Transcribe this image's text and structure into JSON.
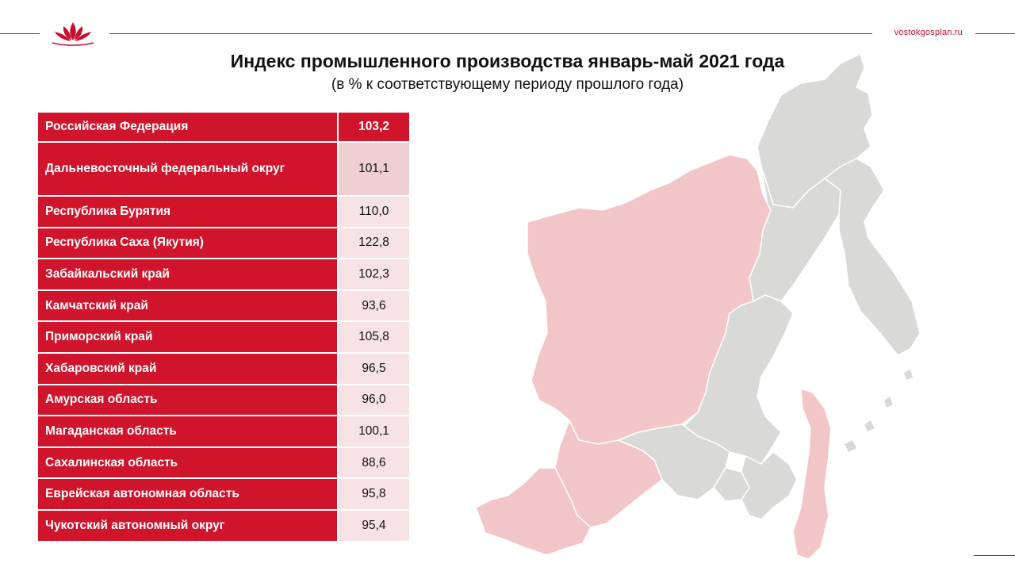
{
  "header": {
    "site_url": "vostokgosplan.ru",
    "accent_color": "#c8102e",
    "logo_icon": "lotus-logo-icon"
  },
  "title": "Индекс промышленного производства январь-май 2021 года",
  "subtitle": "(в % к соответствующему  периоду прошлого года)",
  "table": {
    "rows": [
      {
        "region": "Российская Федерация",
        "value": "103,2"
      },
      {
        "region": "Дальневосточный федеральный округ",
        "value": "101,1"
      },
      {
        "region": "Республика Бурятия",
        "value": "110,0"
      },
      {
        "region": "Республика Саха (Якутия)",
        "value": "122,8"
      },
      {
        "region": "Забайкальский край",
        "value": "102,3"
      },
      {
        "region": "Камчатский край",
        "value": "93,6"
      },
      {
        "region": "Приморский край",
        "value": "105,8"
      },
      {
        "region": "Хабаровский край",
        "value": "96,5"
      },
      {
        "region": "Амурская область",
        "value": "96,0"
      },
      {
        "region": "Магаданская область",
        "value": "100,1"
      },
      {
        "region": "Сахалинская область",
        "value": "88,6"
      },
      {
        "region": "Еврейская автономная область",
        "value": "95,8"
      },
      {
        "region": "Чукотский автономный округ",
        "value": "95,4"
      }
    ]
  },
  "map": {
    "highlight_color": "#f2c6c9",
    "base_color": "#d9d9d7",
    "border_color": "#ffffff"
  }
}
